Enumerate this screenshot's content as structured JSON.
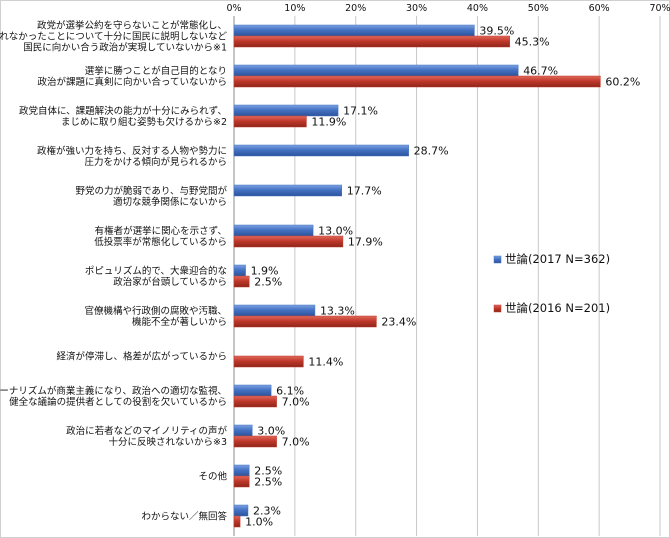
{
  "chart_data": {
    "type": "bar",
    "orientation": "horizontal",
    "title": "",
    "xlabel": "",
    "ylabel": "",
    "xlim": [
      0,
      70
    ],
    "x_ticks": [
      "0%",
      "10%",
      "20%",
      "30%",
      "40%",
      "50%",
      "60%",
      "70%"
    ],
    "grid": true,
    "legend_position": "right",
    "categories": [
      [
        "政党が選挙公約を守らないことが常態化し、",
        "守れなかったことについて十分に国民に説明しないなど",
        "国民に向かい合う政治が実現していないから※1"
      ],
      [
        "選挙に勝つことが自己目的となり",
        "政治が課題に真剣に向かい合っていないから"
      ],
      [
        "政党自体に、課題解決の能力が十分にみられず、",
        "まじめに取り組む姿勢も欠けるから※2"
      ],
      [
        "政権が強い力を持ち、反対する人物や勢力に",
        "圧力をかける傾向が見られるから"
      ],
      [
        "野党の力が脆弱であり、与野党間が",
        "適切な競争関係にないから"
      ],
      [
        "有権者が選挙に関心を示さず、",
        "低投票率が常態化しているから"
      ],
      [
        "ポピュリズム的で、大衆迎合的な",
        "政治家が台頭しているから"
      ],
      [
        "官僚機構や行政側の腐敗や汚職、",
        "機能不全が著しいから"
      ],
      [
        "経済が停滞し、格差が広がっているから"
      ],
      [
        "ジャーナリズムが商業主義になり、政治への適切な監視、",
        "健全な議論の提供者としての役割を欠いているから"
      ],
      [
        "政治に若者などのマイノリティの声が",
        "十分に反映されないから※3"
      ],
      [
        "その他"
      ],
      [
        "わからない／無回答"
      ]
    ],
    "series": [
      {
        "name": "世論(2017 N=362)",
        "color": "#4472c4",
        "values": [
          39.5,
          46.7,
          17.1,
          28.7,
          17.7,
          13.0,
          1.9,
          13.3,
          null,
          6.1,
          3.0,
          2.5,
          2.3
        ],
        "labels": [
          "39.5%",
          "46.7%",
          "17.1%",
          "28.7%",
          "17.7%",
          "13.0%",
          "1.9%",
          "13.3%",
          null,
          "6.1%",
          "3.0%",
          "2.5%",
          "2.3%"
        ]
      },
      {
        "name": "世論(2016 N=201)",
        "color": "#c0392b",
        "values": [
          45.3,
          60.2,
          11.9,
          null,
          null,
          17.9,
          2.5,
          23.4,
          11.4,
          7.0,
          7.0,
          2.5,
          1.0
        ],
        "labels": [
          "45.3%",
          "60.2%",
          "11.9%",
          null,
          null,
          "17.9%",
          "2.5%",
          "23.4%",
          "11.4%",
          "7.0%",
          "7.0%",
          "2.5%",
          "1.0%"
        ]
      }
    ]
  }
}
